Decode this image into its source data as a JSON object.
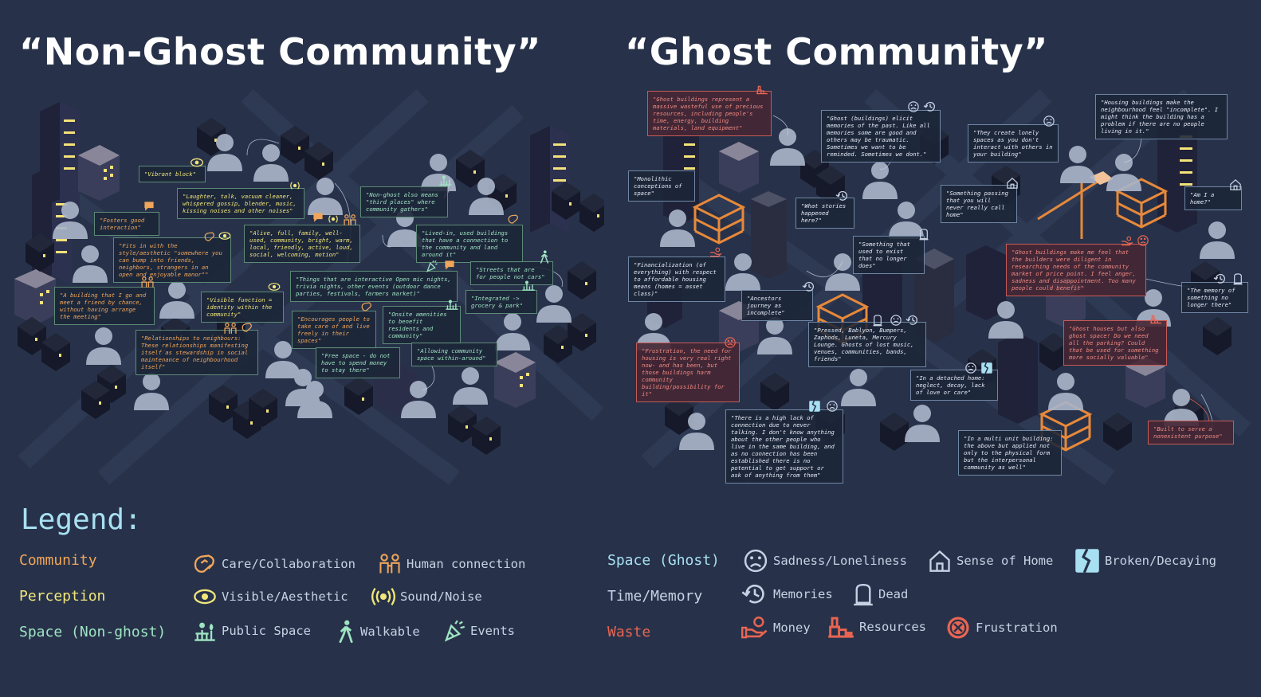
{
  "titles": {
    "left": "“Non-Ghost Community”",
    "right": "“Ghost Community”"
  },
  "colors": {
    "background": "#27324a",
    "community": "#f0a65a",
    "perception": "#f1e67a",
    "space_nonghost": "#9fe4c3",
    "space_ghost": "#a8e0f2",
    "time_memory": "#c6d2e4",
    "waste": "#e86552"
  },
  "nonghost_notes": [
    {
      "text": "\"Vibrant block\"",
      "category": "perception"
    },
    {
      "text": "\"Laughter, talk, vacuum cleaner, whispered gossip, blender, music, kissing noises and other noises\"",
      "category": "perception"
    },
    {
      "text": "\"Fosters good interaction\"",
      "category": "community"
    },
    {
      "text": "\"Alive, full, family, well-used, community, bright, warm, local, friendly, active, loud, social, welcoming, motion\"",
      "category": "perception"
    },
    {
      "text": "\"Non-ghost also means \"third places\" where community gathers\"",
      "category": "space"
    },
    {
      "text": "\"Fits in with the style/aesthetic \"somewhere you can bump into friends, neighbors, strangers in an open and enjoyable manor\"\"",
      "category": "community"
    },
    {
      "text": "\"Lived-in, used buildings that have a connection to the community and land around it\"",
      "category": "space"
    },
    {
      "text": "\"Streets that are for people not cars\"",
      "category": "space"
    },
    {
      "text": "\"Things that are interactive Open mic nights, trivia nights, other events (outdoor dance parties, festivals, farmers market)\"",
      "category": "space"
    },
    {
      "text": "\"A building that I go and meet a friend by chance, without having arrange the meeting\"",
      "category": "community"
    },
    {
      "text": "\"Visible function = identity within the community\"",
      "category": "perception"
    },
    {
      "text": "\"Integrated -> grocery & park\"",
      "category": "space"
    },
    {
      "text": "\"Encourages people to take care of and live freely in their spaces\"",
      "category": "community"
    },
    {
      "text": "\"Onsite amenities to benefit residents and community\"",
      "category": "space"
    },
    {
      "text": "\"Relationships to neighbours: These relationships manifesting itself as stewardship in social maintenance of neighbourhood itself\"",
      "category": "community"
    },
    {
      "text": "\"Free space - do not have to spend money to stay there\"",
      "category": "space"
    },
    {
      "text": "\"Allowing community space within-around\"",
      "category": "space"
    }
  ],
  "ghost_notes": [
    {
      "text": "\"Ghost buildings represent a massive wasteful use of precious resources, including people's time, energy, building materials, land equipment\"",
      "category": "waste"
    },
    {
      "text": "\"Ghost (buildings) elicit memories of the past. Like all memories some are good and others may be traumatic. Sometimes we want to be reminded. Sometimes we dont.\"",
      "category": "memory"
    },
    {
      "text": "\"They create lonely spaces as you don't interact with others in your building\"",
      "category": "space"
    },
    {
      "text": "\"Housing buildings make the neighbourhood feel \"incomplete\". I might think the building has a problem if there are no people living in it.\"",
      "category": "space"
    },
    {
      "text": "\"Monolithic conceptions of space\"",
      "category": "space"
    },
    {
      "text": "\"What stories happened here?\"",
      "category": "memory"
    },
    {
      "text": "\"Something passing that you will never really call home\"",
      "category": "space"
    },
    {
      "text": "\"Am I a home?\"",
      "category": "space"
    },
    {
      "text": "\"Something that used to exist that no longer does\"",
      "category": "memory"
    },
    {
      "text": "\"Financialization (of everything) with respect to affordable housing means (homes = asset class)\"",
      "category": "waste"
    },
    {
      "text": "\"Ghost buildings make me feel that the builders were diligent in researching needs of the community market of price point. I feel anger, sadness and disappointment. Too many people could benefit\"",
      "category": "waste"
    },
    {
      "text": "\"Ancestors journey as incomplete\"",
      "category": "memory"
    },
    {
      "text": "\"The memory of something no longer there\"",
      "category": "memory"
    },
    {
      "text": "\"Pressed, Bablyon, Bumpers, Zaphods, Luneta, Mercury Lounge. Ghosts of lost music, venues, communities, bands, friends\"",
      "category": "memory"
    },
    {
      "text": "\"Ghost houses but also ghost space! Do we need all the parking? Could that be used for something more socially valuable\"",
      "category": "waste"
    },
    {
      "text": "\"Frustration, the need for housing is very real right now- and has been, but those buildings harm community building/possibility for it\"",
      "category": "waste"
    },
    {
      "text": "\"In a detached home: neglect, decay, lack of love or care\"",
      "category": "space"
    },
    {
      "text": "\"There is a high lack of connection due to never talking. I don't know anything about the other people who live in the same building, and as no connection has been established there is no potential to get support or ask of anything from them\"",
      "category": "space"
    },
    {
      "text": "\"In a multi unit building: the above but applied not only to the physical form but the interpersonal community as well\"",
      "category": "space"
    },
    {
      "text": "\"Built to serve a nonexistent purpose\"",
      "category": "waste"
    }
  ],
  "legend": {
    "title": "Legend:",
    "left_categories": [
      {
        "name": "Community",
        "color": "#f0a65a",
        "items": [
          {
            "icon": "care-collaboration-icon",
            "label": "Care/Collaboration"
          },
          {
            "icon": "human-connection-icon",
            "label": "Human connection"
          }
        ]
      },
      {
        "name": "Perception",
        "color": "#f1e67a",
        "items": [
          {
            "icon": "eye-icon",
            "label": "Visible/Aesthetic"
          },
          {
            "icon": "sound-icon",
            "label": "Sound/Noise"
          }
        ]
      },
      {
        "name": "Space (Non-ghost)",
        "color": "#9fe4c3",
        "items": [
          {
            "icon": "public-space-icon",
            "label": "Public Space"
          },
          {
            "icon": "walkable-icon",
            "label": "Walkable"
          },
          {
            "icon": "events-icon",
            "label": "Events"
          }
        ]
      }
    ],
    "right_categories": [
      {
        "name": "Space (Ghost)",
        "color": "#a8e0f2",
        "items": [
          {
            "icon": "sad-face-icon",
            "label": "Sadness/Loneliness"
          },
          {
            "icon": "home-icon",
            "label": "Sense of Home"
          },
          {
            "icon": "broken-icon",
            "label": "Broken/Decaying"
          }
        ]
      },
      {
        "name": "Time/Memory",
        "color": "#c6d2e4",
        "items": [
          {
            "icon": "memories-icon",
            "label": "Memories"
          },
          {
            "icon": "tombstone-icon",
            "label": "Dead"
          }
        ]
      },
      {
        "name": "Waste",
        "color": "#e86552",
        "items": [
          {
            "icon": "money-icon",
            "label": "Money"
          },
          {
            "icon": "resources-icon",
            "label": "Resources"
          },
          {
            "icon": "frustration-icon",
            "label": "Frustration"
          }
        ]
      }
    ]
  }
}
